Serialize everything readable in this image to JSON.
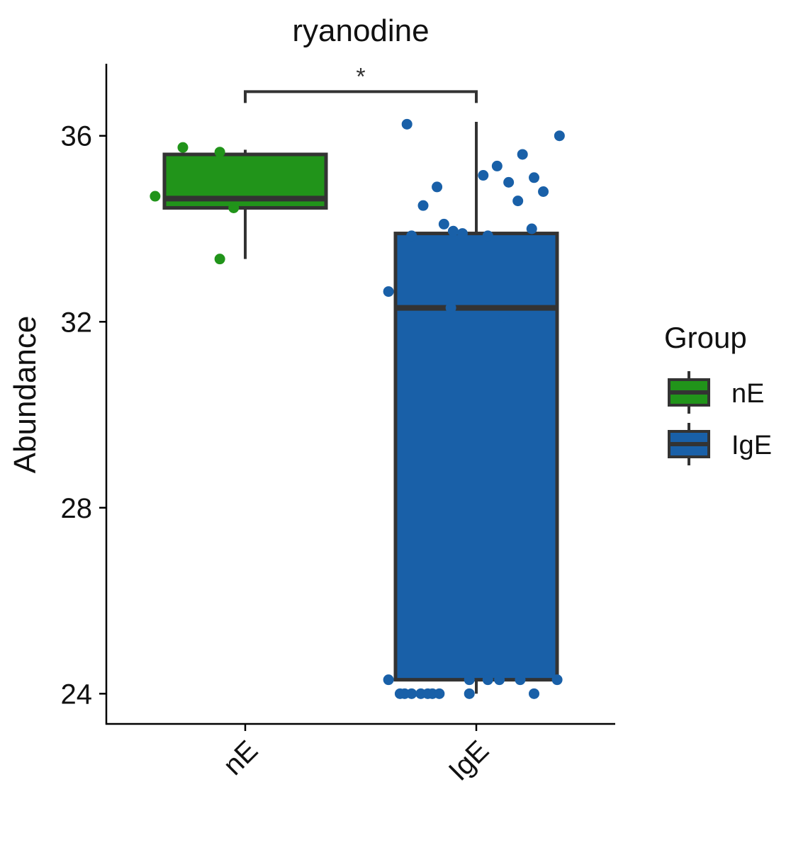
{
  "chart_data": {
    "type": "box",
    "title": "ryanodine",
    "xlabel": "",
    "ylabel": "Abundance",
    "categories": [
      "nE",
      "IgE"
    ],
    "ylim": [
      23.35,
      37.55
    ],
    "yticks": [
      24,
      28,
      32,
      36
    ],
    "grid": false,
    "legend": {
      "title": "Group",
      "placement": "right",
      "entries": [
        "nE",
        "IgE"
      ]
    },
    "colors": {
      "nE": "#21941a",
      "IgE": "#1960a8",
      "outline": "#333333"
    },
    "boxes": [
      {
        "name": "nE",
        "min": 33.35,
        "q1": 34.45,
        "median": 34.65,
        "q3": 35.6,
        "max": 35.7
      },
      {
        "name": "IgE",
        "min": 24.0,
        "q1": 24.3,
        "median": 32.3,
        "q3": 33.9,
        "max": 36.3
      }
    ],
    "points": [
      {
        "name": "nE",
        "values": [
          {
            "offset": -0.39,
            "y": 34.7
          },
          {
            "offset": -0.27,
            "y": 35.75
          },
          {
            "offset": -0.11,
            "y": 35.65
          },
          {
            "offset": -0.11,
            "y": 33.35
          },
          {
            "offset": -0.05,
            "y": 34.45
          }
        ]
      },
      {
        "name": "IgE",
        "values": [
          {
            "offset": -0.38,
            "y": 32.65
          },
          {
            "offset": -0.38,
            "y": 24.3
          },
          {
            "offset": -0.33,
            "y": 24.0
          },
          {
            "offset": -0.31,
            "y": 24.0
          },
          {
            "offset": -0.28,
            "y": 24.0
          },
          {
            "offset": -0.3,
            "y": 36.25
          },
          {
            "offset": -0.28,
            "y": 33.85
          },
          {
            "offset": -0.24,
            "y": 24.0
          },
          {
            "offset": -0.23,
            "y": 34.5
          },
          {
            "offset": -0.21,
            "y": 24.0
          },
          {
            "offset": -0.19,
            "y": 24.0
          },
          {
            "offset": -0.17,
            "y": 34.9
          },
          {
            "offset": -0.16,
            "y": 24.0
          },
          {
            "offset": -0.14,
            "y": 34.1
          },
          {
            "offset": -0.1,
            "y": 33.95
          },
          {
            "offset": -0.11,
            "y": 32.3
          },
          {
            "offset": -0.06,
            "y": 33.9
          },
          {
            "offset": -0.03,
            "y": 24.0
          },
          {
            "offset": -0.03,
            "y": 24.3
          },
          {
            "offset": 0.03,
            "y": 35.15
          },
          {
            "offset": 0.05,
            "y": 33.85
          },
          {
            "offset": 0.05,
            "y": 24.3
          },
          {
            "offset": 0.09,
            "y": 35.35
          },
          {
            "offset": 0.1,
            "y": 24.3
          },
          {
            "offset": 0.12,
            "y": 32.1
          },
          {
            "offset": 0.14,
            "y": 35.0
          },
          {
            "offset": 0.18,
            "y": 34.6
          },
          {
            "offset": 0.2,
            "y": 35.6
          },
          {
            "offset": 0.19,
            "y": 24.3
          },
          {
            "offset": 0.24,
            "y": 34.0
          },
          {
            "offset": 0.25,
            "y": 35.1
          },
          {
            "offset": 0.25,
            "y": 24.0
          },
          {
            "offset": 0.29,
            "y": 34.8
          },
          {
            "offset": 0.35,
            "y": 24.3
          },
          {
            "offset": 0.36,
            "y": 36.0
          }
        ]
      }
    ],
    "annotations": [
      {
        "from": "nE",
        "to": "IgE",
        "y": 36.95,
        "text": "*"
      }
    ]
  }
}
